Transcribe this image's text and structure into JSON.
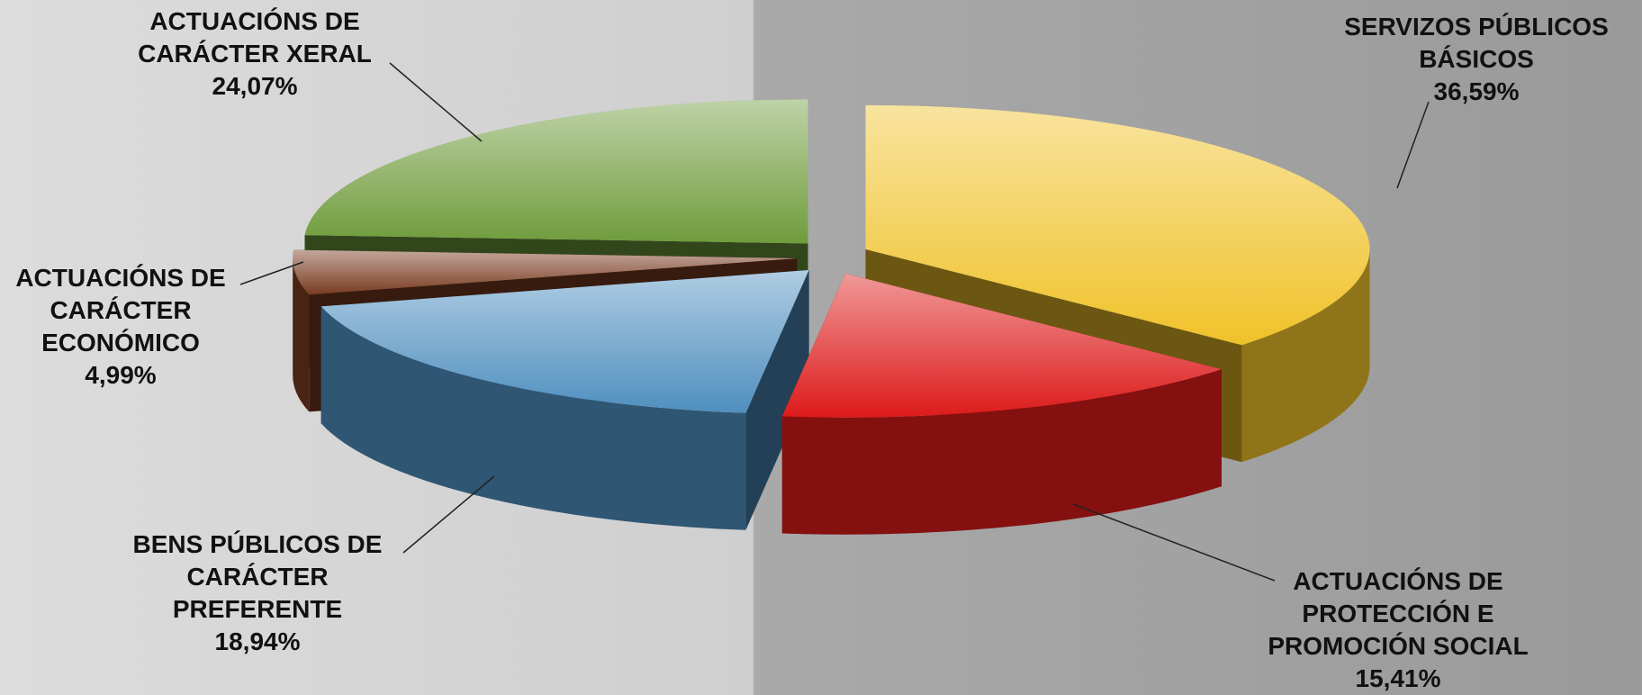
{
  "chart_data": {
    "type": "pie",
    "categories": [
      "SERVIZOS PÚBLICOS BÁSICOS",
      "ACTUACIÓNS DE PROTECCIÓN E PROMOCIÓN SOCIAL",
      "BENS PÚBLICOS DE CARÁCTER PREFERENTE",
      "ACTUACIÓNS DE CARÁCTER ECONÓMICO",
      "ACTUACIÓNS DE CARÁCTER XERAL"
    ],
    "values": [
      36.59,
      15.41,
      18.94,
      4.99,
      24.07
    ],
    "value_labels": [
      "36,59%",
      "15,41%",
      "18,94%",
      "4,99%",
      "24,07%"
    ],
    "colors": [
      "#f0c229",
      "#dd1a1a",
      "#4f8fbf",
      "#7a3c22",
      "#6f9c3c"
    ]
  }
}
